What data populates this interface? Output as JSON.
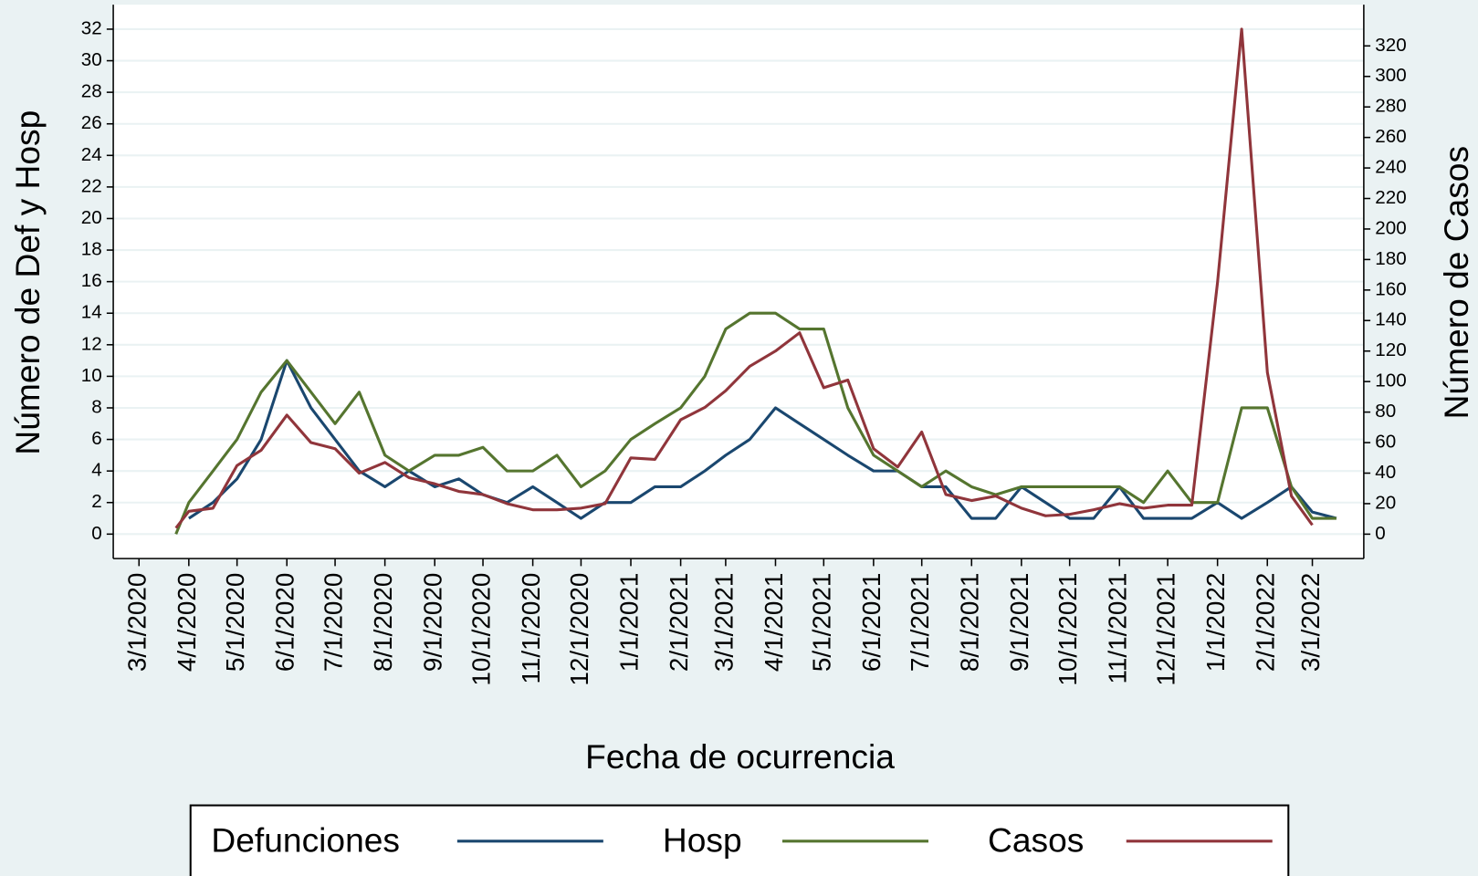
{
  "chart_data": {
    "type": "line",
    "x_label": "Fecha de ocurrencia",
    "y_label": "Número de Def y Hosp",
    "y2_label": "Número de Casos",
    "x": [
      "3/24/2020",
      "4/1/2020",
      "4/16/2020",
      "5/1/2020",
      "5/16/2020",
      "6/1/2020",
      "6/16/2020",
      "7/1/2020",
      "7/16/2020",
      "8/1/2020",
      "8/16/2020",
      "9/1/2020",
      "9/16/2020",
      "10/1/2020",
      "10/16/2020",
      "11/1/2020",
      "11/16/2020",
      "12/1/2020",
      "12/16/2020",
      "1/1/2021",
      "1/16/2021",
      "2/1/2021",
      "2/16/2021",
      "3/1/2021",
      "3/16/2021",
      "4/1/2021",
      "4/16/2021",
      "5/1/2021",
      "5/16/2021",
      "6/1/2021",
      "6/16/2021",
      "7/1/2021",
      "7/16/2021",
      "8/1/2021",
      "8/16/2021",
      "9/1/2021",
      "9/16/2021",
      "10/1/2021",
      "10/16/2021",
      "11/1/2021",
      "11/16/2021",
      "12/1/2021",
      "12/16/2021",
      "1/1/2022",
      "1/16/2022",
      "2/1/2022",
      "2/16/2022",
      "3/1/2022",
      "3/16/2022"
    ],
    "xlim": [
      "2/14/2020",
      "4/2/2022"
    ],
    "xticks": [
      "3/1/2020",
      "4/1/2020",
      "5/1/2020",
      "6/1/2020",
      "7/1/2020",
      "8/1/2020",
      "9/1/2020",
      "10/1/2020",
      "11/1/2020",
      "12/1/2020",
      "1/1/2021",
      "2/1/2021",
      "3/1/2021",
      "4/1/2021",
      "5/1/2021",
      "6/1/2021",
      "7/1/2021",
      "8/1/2021",
      "9/1/2021",
      "10/1/2021",
      "11/1/2021",
      "12/1/2021",
      "1/1/2022",
      "2/1/2022",
      "3/1/2022"
    ],
    "ylim": [
      -1.55,
      33.55
    ],
    "yticks": [
      0,
      2,
      4,
      6,
      8,
      10,
      12,
      14,
      16,
      18,
      20,
      22,
      24,
      26,
      28,
      30,
      32
    ],
    "y2lim": [
      -16,
      347
    ],
    "y2ticks": [
      0,
      20,
      40,
      60,
      80,
      100,
      120,
      140,
      160,
      180,
      200,
      220,
      240,
      260,
      280,
      300,
      320
    ],
    "grid": true,
    "legend": "bottom",
    "series": [
      {
        "name": "Defunciones",
        "color": "#1a476f",
        "values": [
          null,
          1,
          2,
          3.5,
          6,
          11,
          8,
          6,
          4,
          3,
          4,
          3,
          3.5,
          2.5,
          2,
          3,
          2,
          1,
          2,
          2,
          3,
          3,
          4,
          5,
          6,
          8,
          7,
          6,
          5,
          4,
          4,
          3,
          3,
          1,
          1,
          3,
          2,
          1,
          1,
          3,
          1,
          1,
          1,
          2,
          1,
          2,
          3,
          1.4,
          1
        ]
      },
      {
        "name": "Hosp",
        "color": "#55752f",
        "values": [
          0,
          2,
          4,
          6,
          9,
          11,
          9,
          7,
          9,
          5,
          4,
          5,
          5,
          5.5,
          4,
          4,
          5,
          3,
          4,
          6,
          7,
          8,
          10,
          13,
          14,
          14,
          13,
          13,
          8,
          5,
          4,
          3,
          4,
          3,
          2.5,
          3,
          3,
          3,
          3,
          3,
          2,
          4,
          2,
          2,
          8,
          8,
          3,
          1,
          1
        ]
      },
      {
        "name": "Casos",
        "color": "#90353b",
        "axis": "y2",
        "values": [
          4,
          15,
          17,
          45,
          55,
          78,
          60,
          56,
          40,
          47,
          37,
          33,
          28,
          26,
          20,
          16,
          16,
          17,
          20,
          50,
          49,
          75,
          83,
          94,
          110,
          120,
          132,
          96,
          101,
          56,
          44,
          67,
          26,
          22,
          25,
          17,
          12,
          13,
          16,
          20,
          17,
          19,
          19,
          165,
          331,
          106,
          25,
          6,
          null
        ]
      }
    ]
  }
}
